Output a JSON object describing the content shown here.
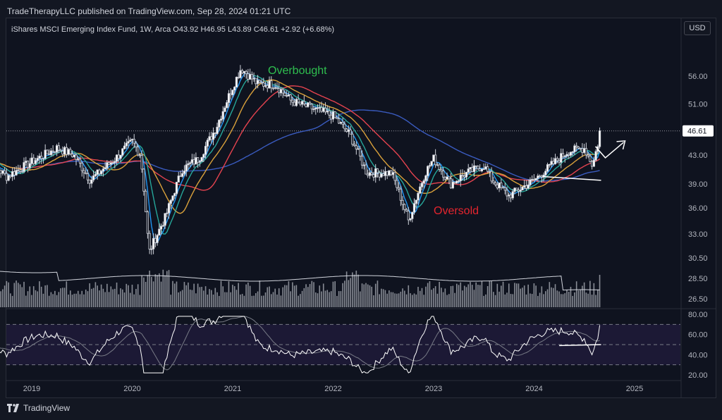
{
  "publication": "TradeTherapyLLC published on TradingView.com, Sep 28, 2024 01:21 UTC",
  "legend": {
    "symbol": "iShares MSCI Emerging Index Fund, 1W, Arca",
    "open": "O43.92",
    "high": "H46.95",
    "low": "L43.89",
    "close": "C46.61",
    "change": "+2.92 (+6.68%)"
  },
  "currency_button": "USD",
  "annotations": {
    "overbought": "Overbought",
    "oversold": "Oversold"
  },
  "footer_brand": "TradingView",
  "colors": {
    "background": "#131722",
    "overbought": "#2fbf4f",
    "oversold": "#e5252e",
    "price_tag": "#ffffff",
    "ma_fast": "#2196f3",
    "ma_green": "#26a69a",
    "ma_orange": "#d9a13b",
    "ma_red": "#e5434f",
    "ma_blue": "#3a5bbf"
  },
  "chart_data": {
    "type": "candlestick",
    "price_axis": {
      "ticks": [
        56.0,
        51.0,
        43.0,
        39.0,
        36.0,
        33.0,
        30.5,
        28.5,
        26.5
      ],
      "tick_labels": [
        "56.00",
        "51.00",
        "43.00",
        "39.00",
        "36.00",
        "33.00",
        "30.50",
        "28.50",
        "26.50"
      ],
      "last_price_label": "46.61",
      "scale": "log"
    },
    "rsi_axis": {
      "ticks": [
        80,
        60,
        40,
        20
      ],
      "tick_labels": [
        "80.00",
        "60.00",
        "40.00",
        "20.00"
      ],
      "band": [
        30,
        70
      ],
      "midline": 50
    },
    "x_axis": {
      "labels": [
        "2019",
        "2020",
        "2021",
        "2022",
        "2023",
        "2024",
        "2025"
      ]
    },
    "price_path": [
      [
        "2018-07",
        43.0
      ],
      [
        "2018-10",
        40.0
      ],
      [
        "2019-01",
        42.0
      ],
      [
        "2019-04",
        44.0
      ],
      [
        "2019-06",
        43.0
      ],
      [
        "2019-08",
        39.5
      ],
      [
        "2019-11",
        42.5
      ],
      [
        "2020-01",
        45.0
      ],
      [
        "2020-02",
        43.0
      ],
      [
        "2020-03",
        31.0
      ],
      [
        "2020-05",
        35.0
      ],
      [
        "2020-07",
        41.0
      ],
      [
        "2020-09",
        42.5
      ],
      [
        "2020-11",
        47.0
      ],
      [
        "2021-01",
        54.0
      ],
      [
        "2021-02",
        57.5
      ],
      [
        "2021-04",
        54.5
      ],
      [
        "2021-06",
        54.5
      ],
      [
        "2021-08",
        51.5
      ],
      [
        "2021-11",
        50.0
      ],
      [
        "2022-01",
        49.0
      ],
      [
        "2022-03",
        46.0
      ],
      [
        "2022-05",
        40.5
      ],
      [
        "2022-08",
        40.5
      ],
      [
        "2022-10",
        34.5
      ],
      [
        "2022-12",
        40.5
      ],
      [
        "2023-01",
        42.5
      ],
      [
        "2023-03",
        39.0
      ],
      [
        "2023-05",
        40.5
      ],
      [
        "2023-07",
        41.5
      ],
      [
        "2023-08",
        39.5
      ],
      [
        "2023-10",
        37.5
      ],
      [
        "2024-01",
        39.5
      ],
      [
        "2024-03",
        41.5
      ],
      [
        "2024-05",
        43.5
      ],
      [
        "2024-07",
        44.0
      ],
      [
        "2024-08",
        41.5
      ],
      [
        "2024-09",
        46.61
      ]
    ],
    "trendlines": [
      {
        "name": "price support",
        "from": [
          "2024-02",
          40.0
        ],
        "to": [
          "2024-09",
          39.5
        ]
      },
      {
        "name": "rsi support",
        "from": [
          "2024-04",
          49
        ],
        "to": [
          "2024-09",
          50
        ]
      }
    ]
  }
}
